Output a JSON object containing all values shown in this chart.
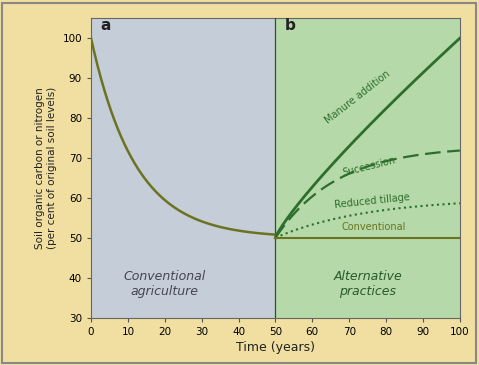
{
  "xlabel": "Time (years)",
  "ylabel": "Soil organic carbon or nitrogen\n(per cent of original soil levels)",
  "xlim": [
    0,
    100
  ],
  "ylim": [
    30,
    105
  ],
  "yticks": [
    30,
    40,
    50,
    60,
    70,
    80,
    90,
    100
  ],
  "xticks": [
    0,
    10,
    20,
    30,
    40,
    50,
    60,
    70,
    80,
    90,
    100
  ],
  "bg_color": "#f0dfa0",
  "panel_a_bg": "#c5cdd8",
  "panel_b_bg": "#b5d9a8",
  "curve_color_dark": "#6b7320",
  "curve_color_medium": "#2d6e2d",
  "label_a": "a",
  "label_b": "b",
  "text_a": "Conventional\nagriculture",
  "text_b": "Alternative\npractices",
  "line_manure_label": "Manure addition",
  "line_succession_label": "Succession",
  "line_reduced_label": "Reduced tillage",
  "line_conventional_label": "Conventional",
  "decay_tau": 12,
  "manure_end": 100,
  "succession_end": 73,
  "reduced_end": 60,
  "conventional_end": 50,
  "border_color": "#888888"
}
